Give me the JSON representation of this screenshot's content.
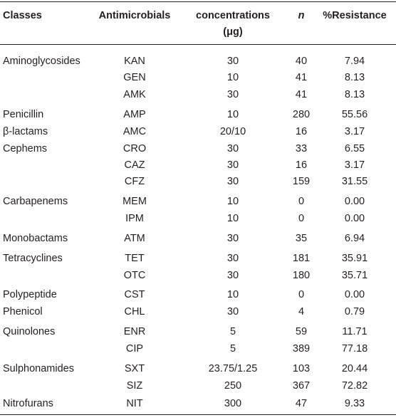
{
  "table": {
    "header": [
      "Classes",
      "Antimicrobials",
      "concentrations (μg)",
      "n",
      "%Resistance"
    ],
    "rows": [
      [
        "Aminoglycosides",
        "KAN",
        "30",
        "40",
        "7.94"
      ],
      [
        null,
        "GEN",
        "10",
        "41",
        "8.13"
      ],
      [
        null,
        "AMK",
        "30",
        "41",
        "8.13"
      ],
      [
        "Penicillin",
        "AMP",
        "10",
        "280",
        "55.56"
      ],
      [
        "β-lactams",
        "AMC",
        "20/10",
        "16",
        "3.17"
      ],
      [
        "Cephems",
        "CRO",
        "30",
        "33",
        "6.55"
      ],
      [
        null,
        "CAZ",
        "30",
        "16",
        "3.17"
      ],
      [
        null,
        "CFZ",
        "30",
        "159",
        "31.55"
      ],
      [
        "Carbapenems",
        "MEM",
        "10",
        "0",
        "0.00"
      ],
      [
        null,
        "IPM",
        "10",
        "0",
        "0.00"
      ],
      [
        "Monobactams",
        "ATM",
        "30",
        "35",
        "6.94"
      ],
      [
        "Tetracyclines",
        "TET",
        "30",
        "181",
        "35.91"
      ],
      [
        null,
        "OTC",
        "30",
        "180",
        "35.71"
      ],
      [
        "Polypeptide",
        "CST",
        "10",
        "0",
        "0.00"
      ],
      [
        "Phenicol",
        "CHL",
        "30",
        "4",
        "0.79"
      ],
      [
        "Quinolones",
        "ENR",
        "5",
        "59",
        "11.71"
      ],
      [
        null,
        "CIP",
        "5",
        "389",
        "77.18"
      ],
      [
        "Sulphonamides",
        "SXT",
        "23.75/1.25",
        "103",
        "20.44"
      ],
      [
        null,
        "SIZ",
        "250",
        "367",
        "72.82"
      ],
      [
        "Nitrofurans",
        "NIT",
        "300",
        "47",
        "9.33"
      ]
    ]
  }
}
